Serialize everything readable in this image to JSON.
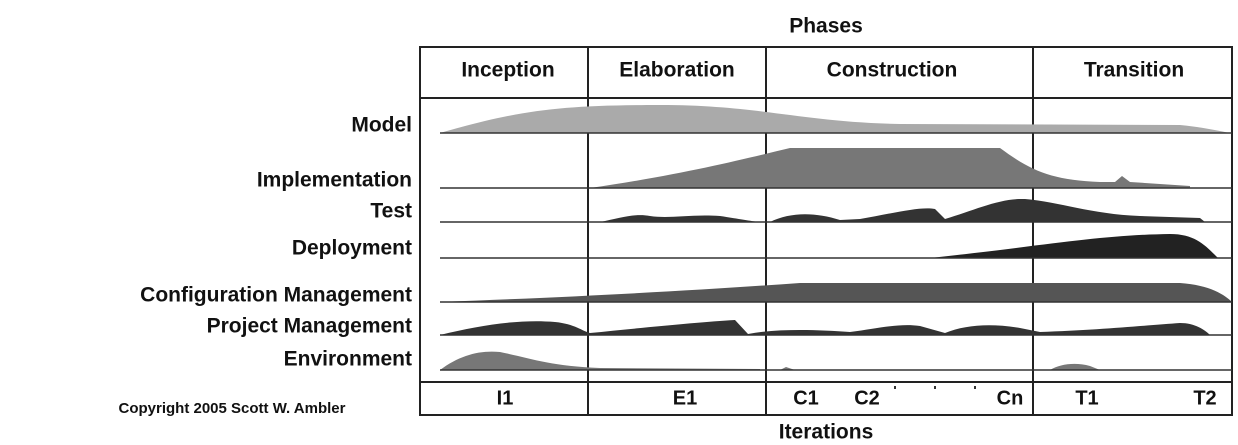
{
  "title": "Phases",
  "phases": [
    "Inception",
    "Elaboration",
    "Construction",
    "Transition"
  ],
  "disciplines": [
    "Model",
    "Implementation",
    "Test",
    "Deployment",
    "Configuration Management",
    "Project Management",
    "Environment"
  ],
  "iterations": [
    "I1",
    "E1",
    "C1",
    "C2",
    "Cn",
    "T1",
    "T2"
  ],
  "iterations_label": "Iterations",
  "copyright": "Copyright 2005 Scott W. Ambler"
}
